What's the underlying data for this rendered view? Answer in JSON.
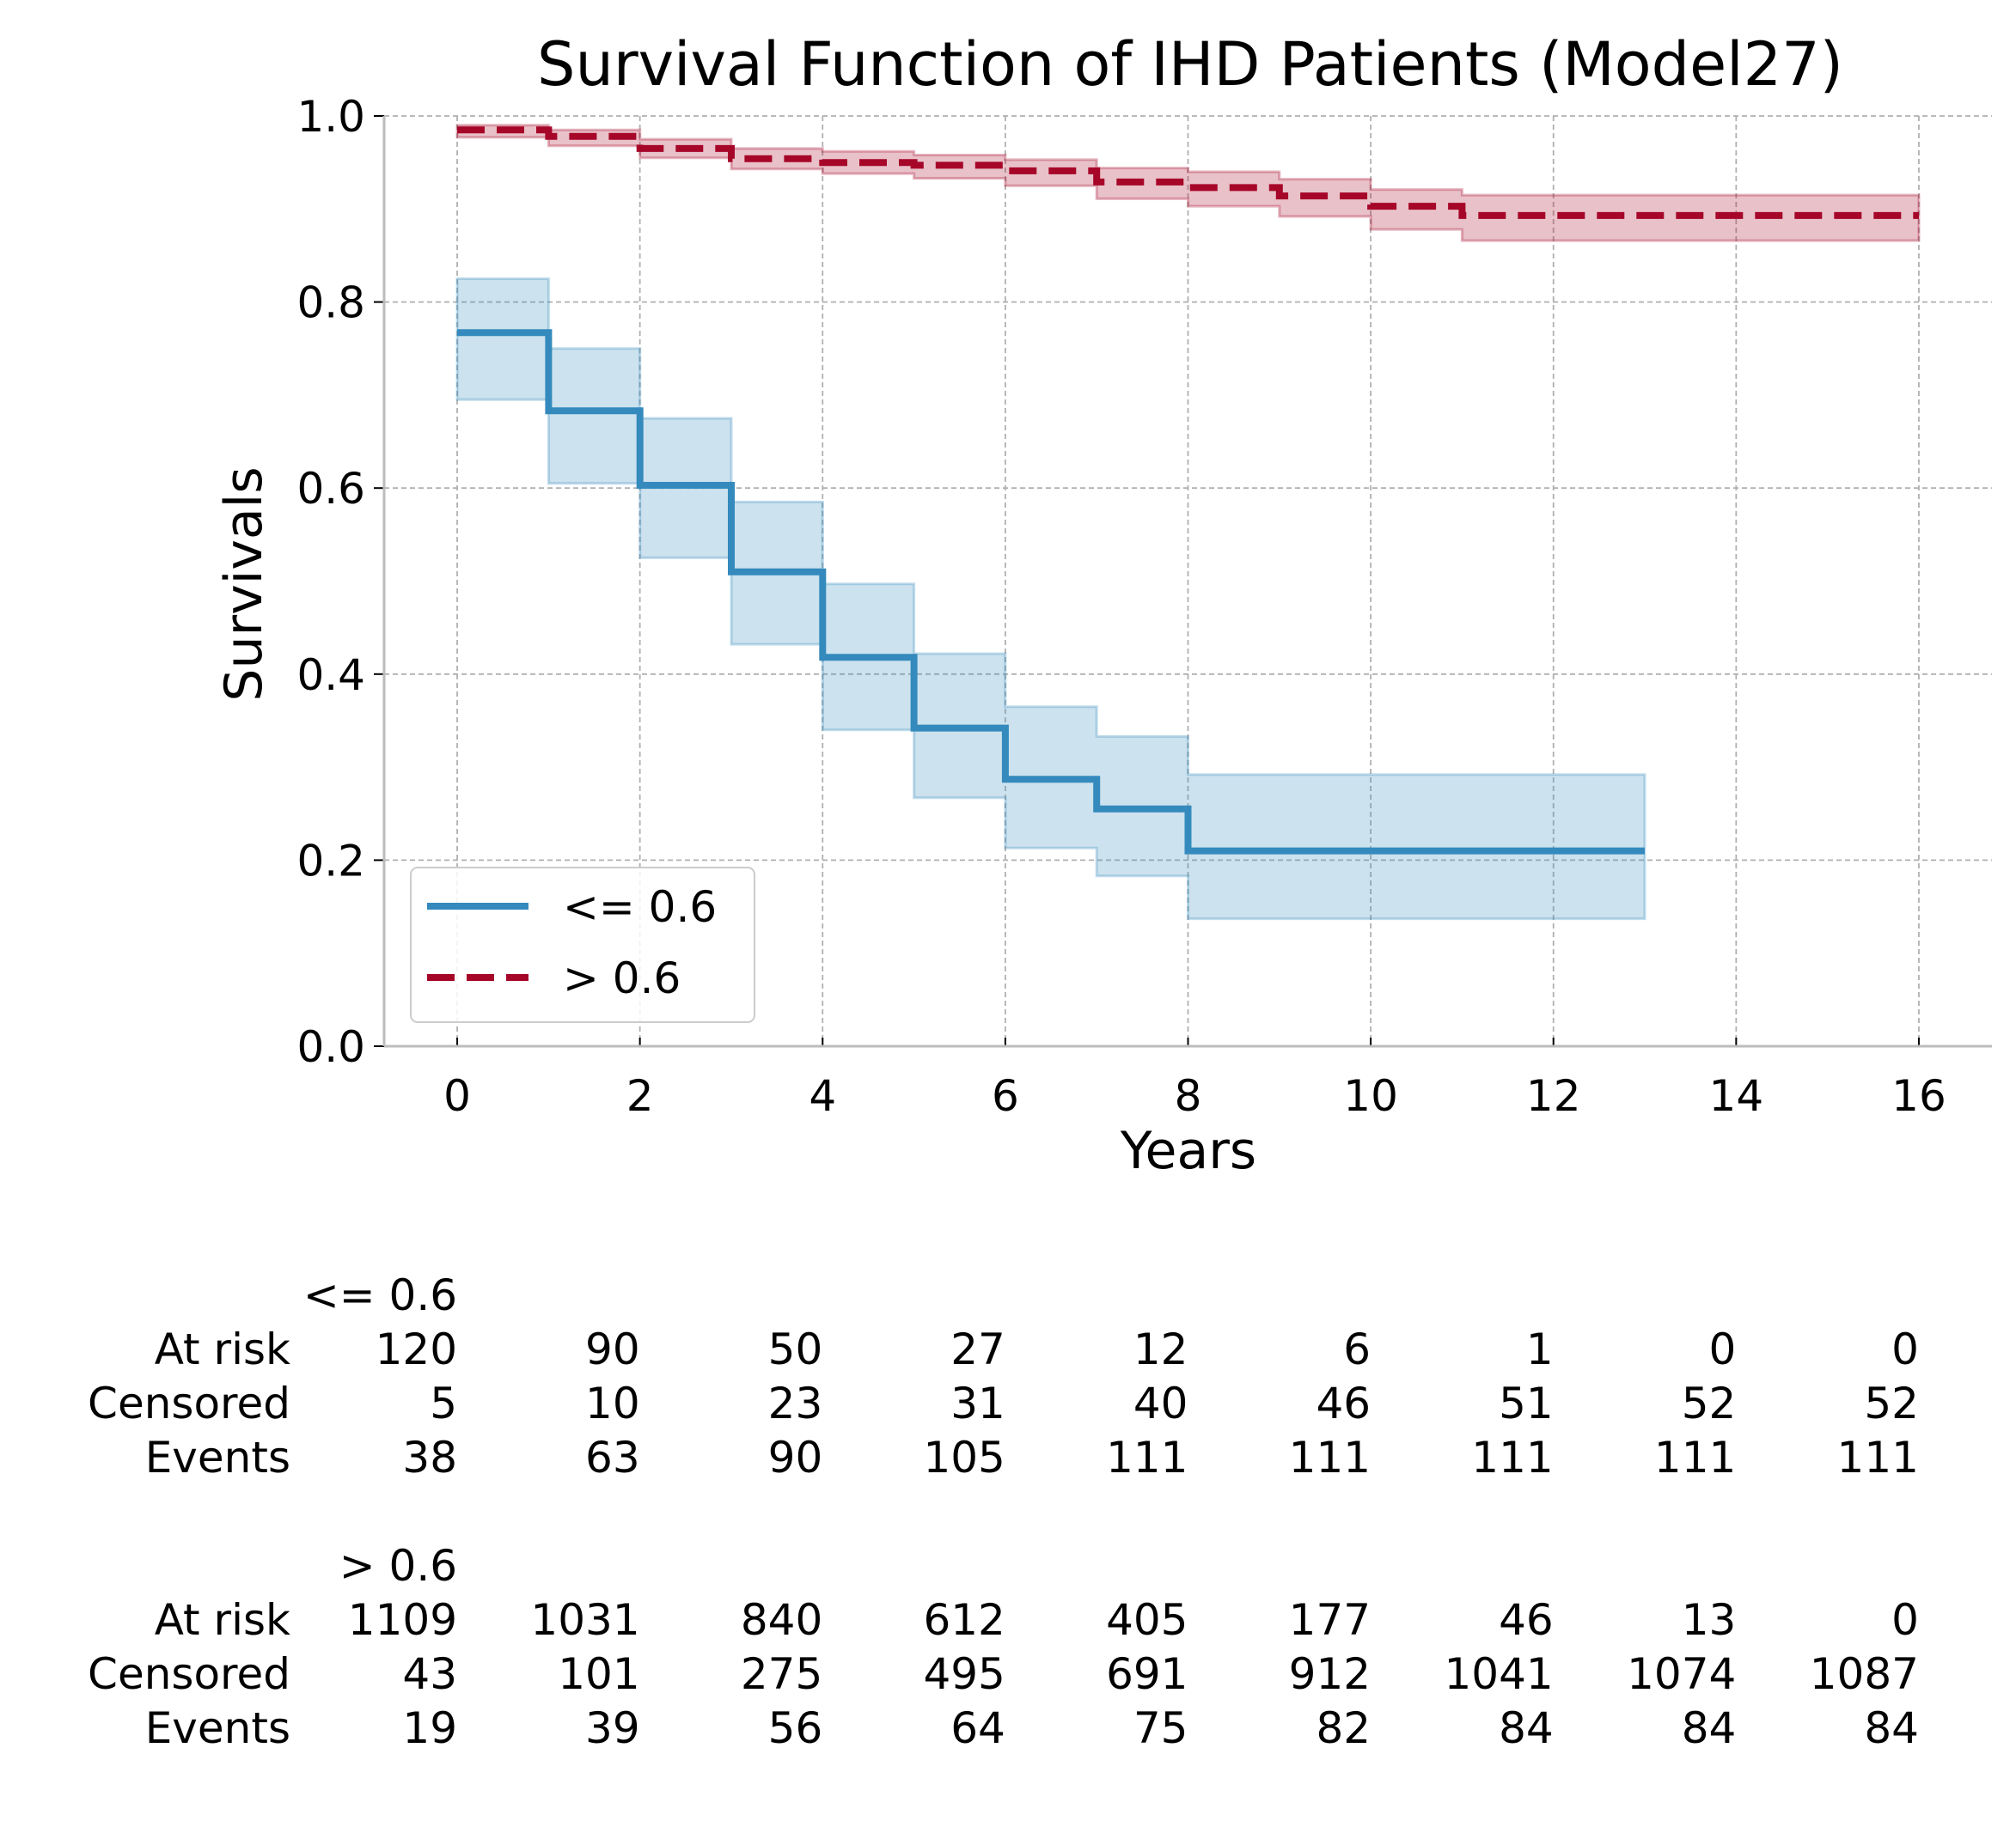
{
  "chart_data": {
    "type": "line",
    "title": "Survival Function of IHD Patients (Model27)",
    "xlabel": "Years",
    "ylabel": "Survivals",
    "xlim": [
      -0.8,
      16.8
    ],
    "ylim": [
      0,
      1.0
    ],
    "x_ticks": [
      "0",
      "2",
      "4",
      "6",
      "8",
      "10",
      "12",
      "14",
      "16"
    ],
    "y_ticks": [
      "0.0",
      "0.2",
      "0.4",
      "0.6",
      "0.8",
      "1.0"
    ],
    "grid": true,
    "legend_position": "lower-left",
    "series": [
      {
        "name": "<= 0.6",
        "color": "#348ABD",
        "style": "solid",
        "step_x": [
          0,
          1,
          2,
          3,
          4,
          5,
          6,
          7,
          8,
          13
        ],
        "survival": [
          0.767,
          0.683,
          0.603,
          0.51,
          0.418,
          0.342,
          0.287,
          0.255,
          0.21,
          0.21
        ],
        "ci_lower": [
          0.695,
          0.605,
          0.525,
          0.432,
          0.34,
          0.267,
          0.213,
          0.183,
          0.137,
          0.137
        ],
        "ci_upper": [
          0.825,
          0.75,
          0.675,
          0.585,
          0.497,
          0.422,
          0.365,
          0.333,
          0.292,
          0.292
        ]
      },
      {
        "name": "> 0.6",
        "color": "#A60628",
        "style": "dashed",
        "step_x": [
          0,
          1,
          2,
          3,
          4,
          5,
          6,
          7,
          8,
          9,
          10,
          11,
          16
        ],
        "survival": [
          0.985,
          0.978,
          0.965,
          0.954,
          0.95,
          0.947,
          0.941,
          0.929,
          0.923,
          0.914,
          0.903,
          0.893,
          0.893
        ],
        "ci_lower": [
          0.977,
          0.968,
          0.955,
          0.943,
          0.938,
          0.933,
          0.925,
          0.911,
          0.903,
          0.892,
          0.878,
          0.866,
          0.866
        ],
        "ci_upper": [
          0.99,
          0.985,
          0.975,
          0.965,
          0.962,
          0.958,
          0.953,
          0.944,
          0.94,
          0.932,
          0.921,
          0.915,
          0.915
        ]
      }
    ],
    "risk_table": {
      "times": [
        0,
        2,
        4,
        6,
        8,
        10,
        12,
        14,
        16
      ],
      "groups": [
        {
          "label": "<= 0.6",
          "rows": [
            {
              "label": "At risk",
              "values": [
                "120",
                "90",
                "50",
                "27",
                "12",
                "6",
                "1",
                "0",
                "0"
              ]
            },
            {
              "label": "Censored",
              "values": [
                "5",
                "10",
                "23",
                "31",
                "40",
                "46",
                "51",
                "52",
                "52"
              ]
            },
            {
              "label": "Events",
              "values": [
                "38",
                "63",
                "90",
                "105",
                "111",
                "111",
                "111",
                "111",
                "111"
              ]
            }
          ]
        },
        {
          "label": "> 0.6",
          "rows": [
            {
              "label": "At risk",
              "values": [
                "1109",
                "1031",
                "840",
                "612",
                "405",
                "177",
                "46",
                "13",
                "0"
              ]
            },
            {
              "label": "Censored",
              "values": [
                "43",
                "101",
                "275",
                "495",
                "691",
                "912",
                "1041",
                "1074",
                "1087"
              ]
            },
            {
              "label": "Events",
              "values": [
                "19",
                "39",
                "56",
                "64",
                "75",
                "82",
                "84",
                "84",
                "84"
              ]
            }
          ]
        }
      ]
    }
  }
}
